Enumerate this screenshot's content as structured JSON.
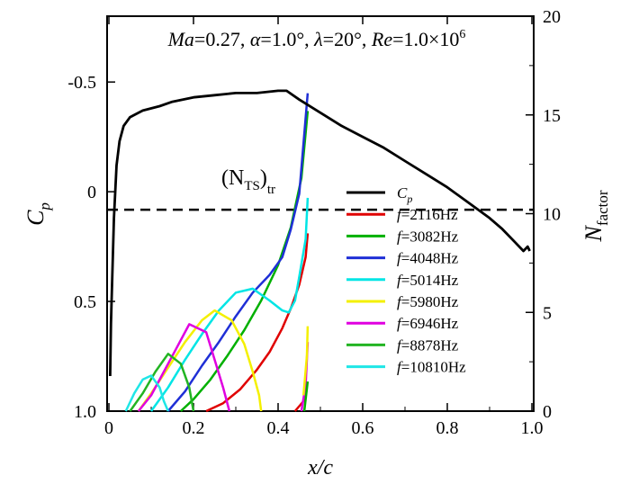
{
  "chart_data": {
    "type": "line",
    "title": {
      "ma_sym": "Ma",
      "ma_val": "=0.27, ",
      "alpha_sym": "α",
      "alpha_val": "=1.0°, ",
      "lambda_sym": "λ",
      "lambda_val": "=20°, ",
      "re_sym": "Re",
      "re_val": "=1.0×10",
      "re_exp": "6"
    },
    "xlabel": "x/c",
    "ylabel_left": {
      "main": "C",
      "sub": "p"
    },
    "ylabel_right": {
      "main": "N",
      "sub": "factor"
    },
    "xlim": [
      0,
      1
    ],
    "ylim_left": [
      1.0,
      -0.8
    ],
    "ylim_right": [
      0,
      20
    ],
    "x_ticks": [
      "0",
      "0.2",
      "0.4",
      "0.6",
      "0.8",
      "1.0"
    ],
    "x_tick_values": [
      0,
      0.2,
      0.4,
      0.6,
      0.8,
      1.0
    ],
    "left_ticks": [
      "-0.5",
      "0",
      "0.5",
      "1.0"
    ],
    "left_tick_values": [
      -0.5,
      0,
      0.5,
      1.0
    ],
    "right_ticks": [
      "0",
      "5",
      "10",
      "15",
      "20"
    ],
    "right_tick_values": [
      0,
      5,
      10,
      15,
      20
    ],
    "threshold": {
      "label_main": "(N",
      "label_sub1": "TS",
      "label_close": ")",
      "label_sub2": "tr",
      "n_value": 10.2,
      "style": "dashed",
      "color": "#000000"
    },
    "cp_series": {
      "name": "C",
      "name_sub": "p",
      "color": "#000000",
      "axis": "left",
      "points": [
        [
          0.003,
          0.84
        ],
        [
          0.005,
          0.6
        ],
        [
          0.008,
          0.38
        ],
        [
          0.012,
          0.12
        ],
        [
          0.018,
          -0.12
        ],
        [
          0.025,
          -0.23
        ],
        [
          0.035,
          -0.3
        ],
        [
          0.05,
          -0.34
        ],
        [
          0.08,
          -0.37
        ],
        [
          0.12,
          -0.39
        ],
        [
          0.15,
          -0.41
        ],
        [
          0.2,
          -0.43
        ],
        [
          0.25,
          -0.44
        ],
        [
          0.3,
          -0.45
        ],
        [
          0.35,
          -0.45
        ],
        [
          0.4,
          -0.46
        ],
        [
          0.42,
          -0.46
        ],
        [
          0.45,
          -0.42
        ],
        [
          0.5,
          -0.36
        ],
        [
          0.55,
          -0.3
        ],
        [
          0.6,
          -0.25
        ],
        [
          0.65,
          -0.2
        ],
        [
          0.7,
          -0.14
        ],
        [
          0.75,
          -0.08
        ],
        [
          0.8,
          -0.02
        ],
        [
          0.85,
          0.05
        ],
        [
          0.9,
          0.12
        ],
        [
          0.93,
          0.17
        ],
        [
          0.96,
          0.23
        ],
        [
          0.98,
          0.27
        ],
        [
          0.99,
          0.25
        ],
        [
          0.995,
          0.27
        ]
      ]
    },
    "series": [
      {
        "name": "f",
        "freq": "=2116Hz",
        "color": "#e00000",
        "axis": "right",
        "points": [
          [
            0.23,
            0
          ],
          [
            0.27,
            0.4
          ],
          [
            0.31,
            1.1
          ],
          [
            0.35,
            2.1
          ],
          [
            0.38,
            3.0
          ],
          [
            0.41,
            4.2
          ],
          [
            0.43,
            5.2
          ],
          [
            0.45,
            6.4
          ],
          [
            0.465,
            7.8
          ],
          [
            0.47,
            9.0
          ]
        ]
      },
      {
        "name": "f",
        "freq": "=3082Hz",
        "color": "#00b000",
        "axis": "right",
        "points": [
          [
            0.17,
            0
          ],
          [
            0.2,
            0.6
          ],
          [
            0.24,
            1.6
          ],
          [
            0.28,
            2.8
          ],
          [
            0.32,
            4.1
          ],
          [
            0.36,
            5.6
          ],
          [
            0.4,
            7.4
          ],
          [
            0.43,
            9.3
          ],
          [
            0.455,
            11.8
          ],
          [
            0.47,
            15.2
          ]
        ]
      },
      {
        "name": "f",
        "freq": "=4048Hz",
        "color": "#1f2fd6",
        "axis": "right",
        "points": [
          [
            0.14,
            0
          ],
          [
            0.18,
            1.0
          ],
          [
            0.22,
            2.3
          ],
          [
            0.26,
            3.5
          ],
          [
            0.3,
            4.8
          ],
          [
            0.34,
            6.0
          ],
          [
            0.38,
            6.9
          ],
          [
            0.41,
            7.8
          ],
          [
            0.43,
            9.2
          ],
          [
            0.45,
            11.0
          ],
          [
            0.47,
            16.1
          ]
        ]
      },
      {
        "name": "f",
        "freq": "=5014Hz",
        "color": "#00e5e5",
        "axis": "right",
        "points": [
          [
            0.1,
            0
          ],
          [
            0.14,
            1.2
          ],
          [
            0.18,
            2.6
          ],
          [
            0.22,
            3.9
          ],
          [
            0.26,
            5.1
          ],
          [
            0.3,
            6.0
          ],
          [
            0.34,
            6.2
          ],
          [
            0.38,
            5.6
          ],
          [
            0.41,
            5.1
          ],
          [
            0.425,
            5.0
          ],
          [
            0.44,
            5.6
          ],
          [
            0.45,
            6.8
          ],
          [
            0.465,
            8.7
          ],
          [
            0.47,
            10.8
          ]
        ]
      },
      {
        "name": "f",
        "freq": "=5980Hz",
        "color": "#f4f000",
        "axis": "right",
        "points": [
          [
            0.07,
            0
          ],
          [
            0.1,
            0.9
          ],
          [
            0.14,
            2.2
          ],
          [
            0.18,
            3.5
          ],
          [
            0.22,
            4.6
          ],
          [
            0.25,
            5.1
          ],
          [
            0.29,
            4.6
          ],
          [
            0.32,
            3.4
          ],
          [
            0.34,
            2.0
          ],
          [
            0.355,
            0.8
          ],
          [
            0.36,
            0
          ]
        ]
      },
      {
        "name": "f",
        "freq": "=6946Hz",
        "color": "#e000e0",
        "axis": "right",
        "points": [
          [
            0.07,
            0
          ],
          [
            0.1,
            0.8
          ],
          [
            0.13,
            2.0
          ],
          [
            0.16,
            3.2
          ],
          [
            0.19,
            4.4
          ],
          [
            0.23,
            4.0
          ],
          [
            0.25,
            2.6
          ],
          [
            0.27,
            1.2
          ],
          [
            0.285,
            0
          ]
        ]
      },
      {
        "name": "f",
        "freq": "=8878Hz",
        "color": "#22b422",
        "axis": "right",
        "points": [
          [
            0.05,
            0
          ],
          [
            0.08,
            0.9
          ],
          [
            0.11,
            2.0
          ],
          [
            0.14,
            2.9
          ],
          [
            0.17,
            2.4
          ],
          [
            0.19,
            1.2
          ],
          [
            0.2,
            0
          ]
        ]
      },
      {
        "name": "f",
        "freq": "=10810Hz",
        "color": "#1fe6e6",
        "axis": "right",
        "points": [
          [
            0.04,
            0
          ],
          [
            0.06,
            0.9
          ],
          [
            0.08,
            1.6
          ],
          [
            0.1,
            1.8
          ],
          [
            0.12,
            1.2
          ],
          [
            0.13,
            0.5
          ],
          [
            0.14,
            0
          ]
        ]
      }
    ],
    "tail_segments": [
      {
        "color": "#e00000",
        "points": [
          [
            0.44,
            0
          ],
          [
            0.46,
            0.5
          ],
          [
            0.468,
            1.4
          ]
        ]
      },
      {
        "color": "#e000e0",
        "points": [
          [
            0.455,
            0
          ],
          [
            0.465,
            1.3
          ],
          [
            0.47,
            3.5
          ]
        ]
      },
      {
        "color": "#f4f000",
        "points": [
          [
            0.46,
            0.8
          ],
          [
            0.468,
            2.8
          ],
          [
            0.47,
            4.3
          ]
        ]
      },
      {
        "color": "#00b000",
        "points": [
          [
            0.462,
            0
          ],
          [
            0.47,
            1.5
          ]
        ]
      }
    ],
    "legend": {
      "position": "right"
    }
  }
}
